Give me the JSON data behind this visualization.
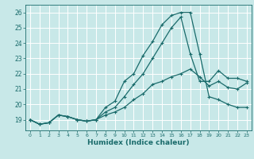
{
  "xlabel": "Humidex (Indice chaleur)",
  "bg_color": "#c8e8e8",
  "grid_color": "#b0d8d8",
  "line_color": "#1a6b6b",
  "xlim": [
    -0.5,
    23.5
  ],
  "ylim": [
    18.3,
    26.5
  ],
  "xticks": [
    0,
    1,
    2,
    3,
    4,
    5,
    6,
    7,
    8,
    9,
    10,
    11,
    12,
    13,
    14,
    15,
    16,
    17,
    18,
    19,
    20,
    21,
    22,
    23
  ],
  "yticks": [
    19,
    20,
    21,
    22,
    23,
    24,
    25,
    26
  ],
  "series": [
    [
      19.0,
      18.7,
      18.8,
      19.3,
      19.2,
      19.0,
      18.9,
      19.0,
      19.3,
      19.5,
      19.8,
      20.3,
      20.7,
      21.3,
      21.5,
      21.8,
      22.0,
      22.3,
      21.8,
      21.2,
      21.5,
      21.1,
      21.0,
      21.4
    ],
    [
      19.0,
      18.7,
      18.8,
      19.3,
      19.2,
      19.0,
      18.9,
      19.0,
      19.5,
      19.8,
      20.5,
      21.3,
      22.0,
      23.0,
      24.0,
      25.0,
      25.7,
      23.3,
      21.5,
      21.5,
      22.2,
      21.7,
      21.7,
      21.5
    ],
    [
      19.0,
      18.7,
      18.8,
      19.3,
      19.2,
      19.0,
      18.9,
      19.0,
      19.8,
      20.2,
      21.5,
      22.0,
      23.2,
      24.1,
      25.2,
      25.8,
      26.0,
      26.0,
      23.3,
      20.5,
      20.3,
      20.0,
      19.8,
      19.8
    ]
  ]
}
